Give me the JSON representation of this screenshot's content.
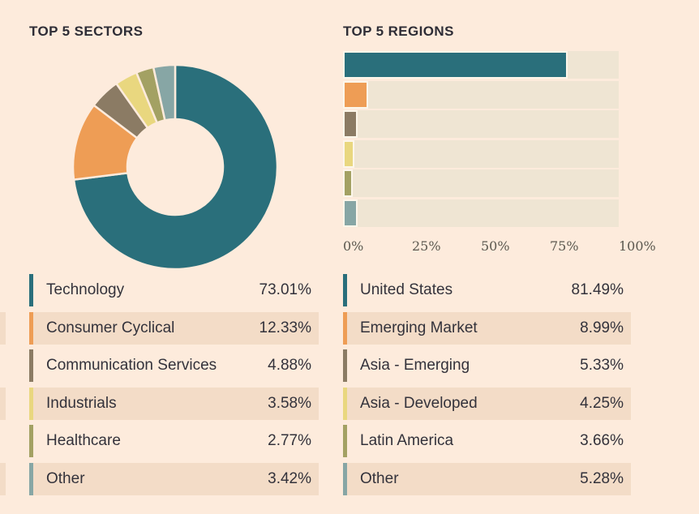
{
  "page": {
    "background_color": "#fdebdc",
    "row_highlight_color": "#f3dcc7",
    "bar_track_color": "#efe5d3",
    "bar_outline_color": "#fcf6ea",
    "text_color": "#33323b",
    "axis_text_color": "#5b584f"
  },
  "chart_data": [
    {
      "id": "sectors",
      "type": "pie",
      "subtype": "donut",
      "title": "TOP 5 SECTORS",
      "labels": [
        "Technology",
        "Consumer Cyclical",
        "Communication Services",
        "Industrials",
        "Healthcare",
        "Other"
      ],
      "values": [
        73.01,
        12.33,
        4.88,
        3.58,
        2.77,
        3.42
      ],
      "display_values": [
        "73.01%",
        "12.33%",
        "4.88%",
        "3.58%",
        "2.77%",
        "3.42%"
      ],
      "colors": [
        "#2a6f7b",
        "#ee9d55",
        "#8b7b64",
        "#e9d77f",
        "#a3a163",
        "#87a6a5"
      ],
      "start_angle_deg": 0,
      "direction": "clockwise",
      "legend_position": "bottom"
    },
    {
      "id": "regions",
      "type": "bar",
      "orientation": "horizontal",
      "title": "TOP 5 REGIONS",
      "categories": [
        "United States",
        "Emerging Market",
        "Asia - Emerging",
        "Asia - Developed",
        "Latin America",
        "Other"
      ],
      "values": [
        81.49,
        8.99,
        5.33,
        4.25,
        3.66,
        5.28
      ],
      "display_values": [
        "81.49%",
        "8.99%",
        "5.33%",
        "4.25%",
        "3.66%",
        "5.28%"
      ],
      "colors": [
        "#2a6f7b",
        "#ee9d55",
        "#8b7b64",
        "#e9d77f",
        "#a3a163",
        "#87a6a5"
      ],
      "xlim": [
        0,
        100
      ],
      "xticks": [
        "0%",
        "25%",
        "50%",
        "75%",
        "100%"
      ],
      "grid": false,
      "legend_position": "bottom"
    }
  ]
}
